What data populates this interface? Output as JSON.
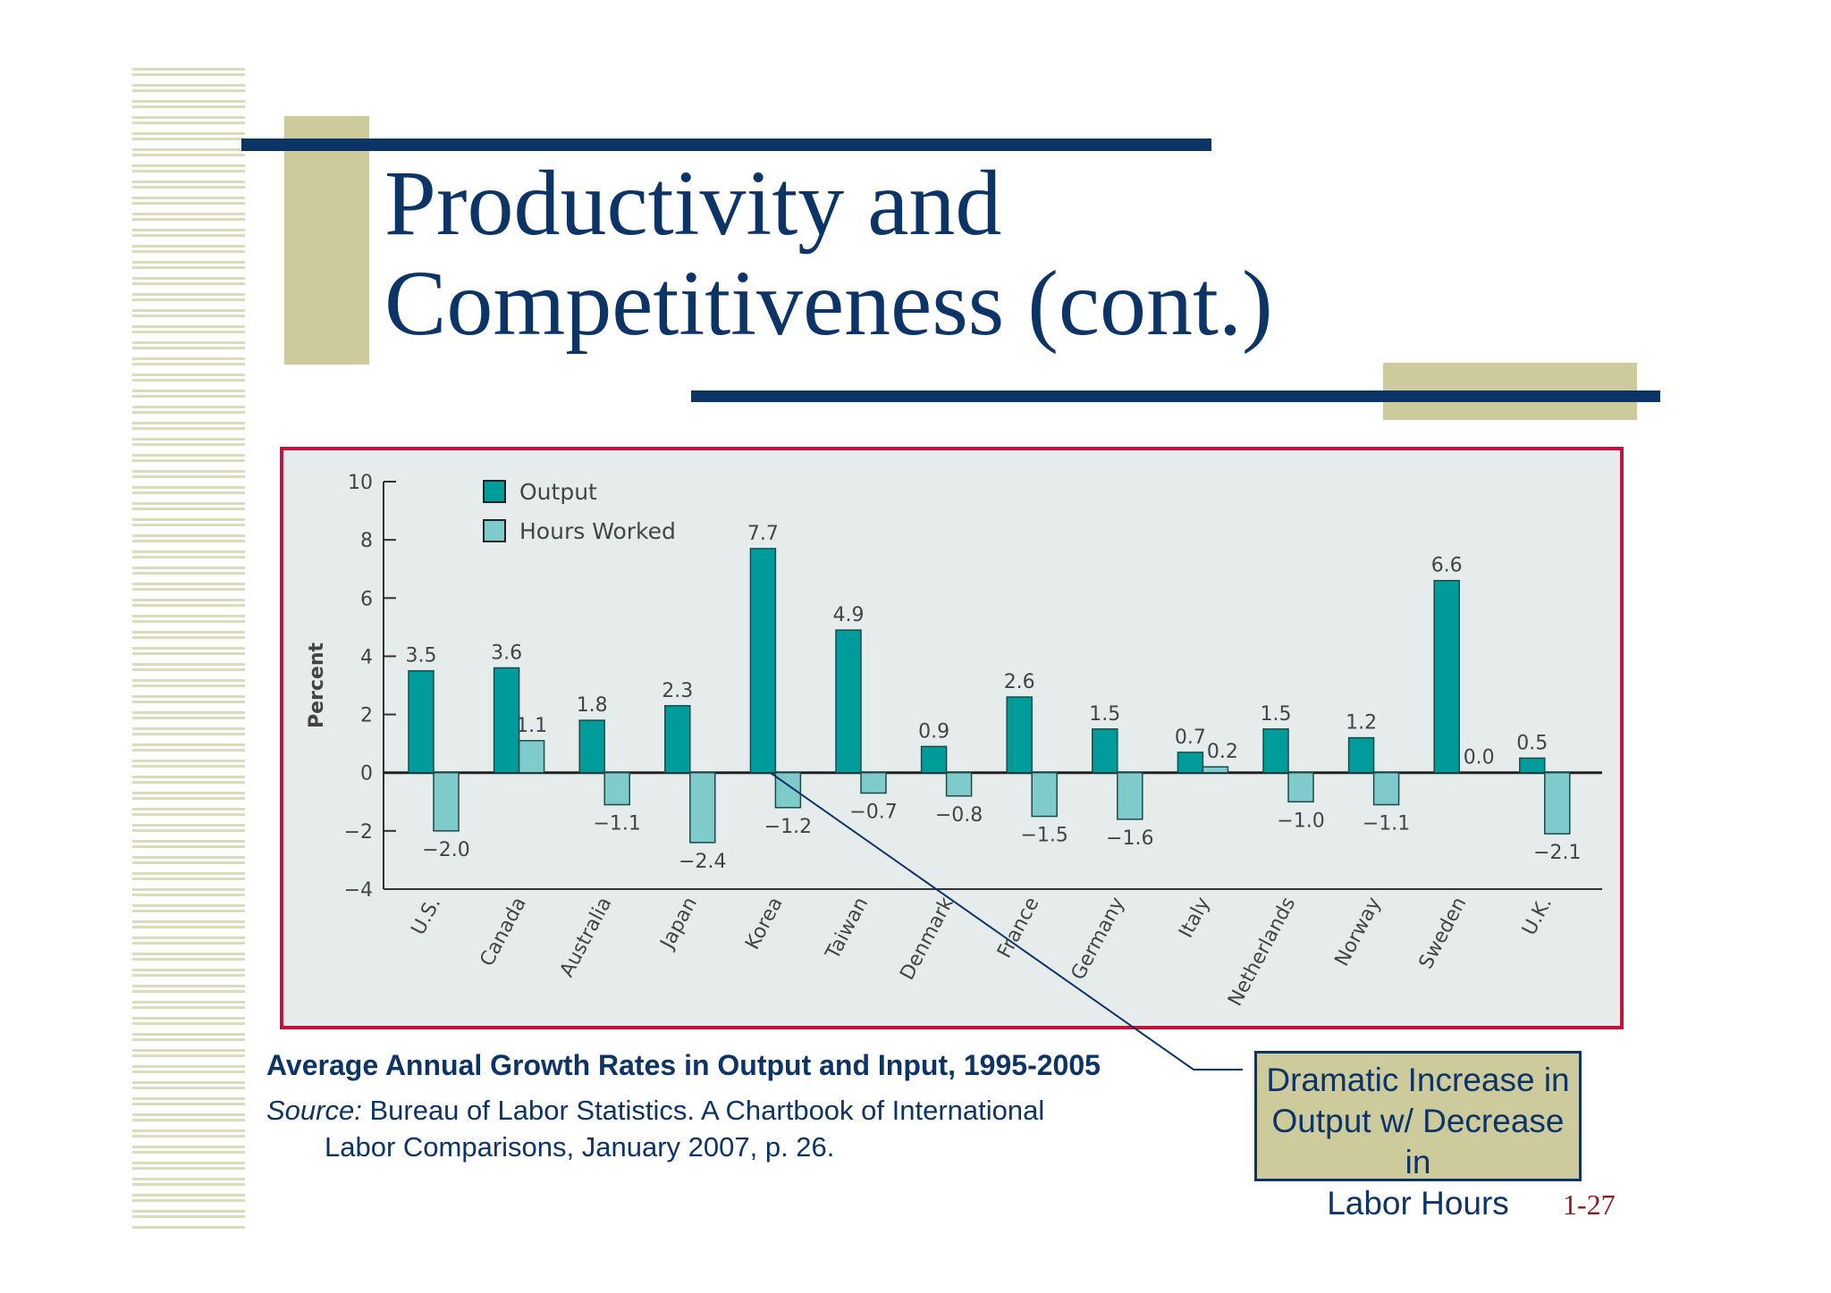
{
  "slide": {
    "title_line1": "Productivity and",
    "title_line2": "Competitiveness (cont.)",
    "caption": "Average Annual Growth Rates in Output and Input, 1995-2005",
    "source_label": "Source:",
    "source_line1": " Bureau of Labor Statistics.  A Chartbook of International",
    "source_line2": "Labor Comparisons, January 2007, p. 26.",
    "callout_line1": "Dramatic Increase in",
    "callout_line2": "Output w/ Decrease in",
    "callout_line3": "Labor Hours",
    "page_number": "1-27"
  },
  "colors": {
    "navy": "#0d3466",
    "olive": "#cdcb9c",
    "frame": "#c0143c",
    "output": "#009b9b",
    "hours": "#7fcaca",
    "chart_bg": "#e6ecec"
  },
  "chart_data": {
    "type": "bar",
    "ylabel": "Percent",
    "ylim": [
      -4,
      10
    ],
    "yticks": [
      10,
      8,
      6,
      4,
      2,
      0,
      -2,
      -4
    ],
    "legend_placement": "top-left",
    "grid": false,
    "categories": [
      "U.S.",
      "Canada",
      "Australia",
      "Japan",
      "Korea",
      "Taiwan",
      "Denmark",
      "France",
      "Germany",
      "Italy",
      "Netherlands",
      "Norway",
      "Sweden",
      "U.K."
    ],
    "series": [
      {
        "name": "Output",
        "values": [
          3.5,
          3.6,
          1.8,
          2.3,
          7.7,
          4.9,
          0.9,
          2.6,
          1.5,
          0.7,
          1.5,
          1.2,
          6.6,
          0.5
        ],
        "labels": [
          "3.5",
          "3.6",
          "1.8",
          "2.3",
          "7.7",
          "4.9",
          "0.9",
          "2.6",
          "1.5",
          "0.7",
          "1.5",
          "1.2",
          "6.6",
          "0.5"
        ]
      },
      {
        "name": "Hours Worked",
        "values": [
          -2.0,
          1.1,
          -1.1,
          -2.4,
          -1.2,
          -0.7,
          -0.8,
          -1.5,
          -1.6,
          0.2,
          -1.0,
          -1.1,
          0.0,
          -2.1
        ],
        "labels": [
          "−2.0",
          "1.1",
          "−1.1",
          "−2.4",
          "−1.2",
          "−0.7",
          "−0.8",
          "−1.5",
          "−1.6",
          "0.2",
          "−1.0",
          "−1.1",
          "0.0",
          "−2.1"
        ]
      }
    ]
  }
}
